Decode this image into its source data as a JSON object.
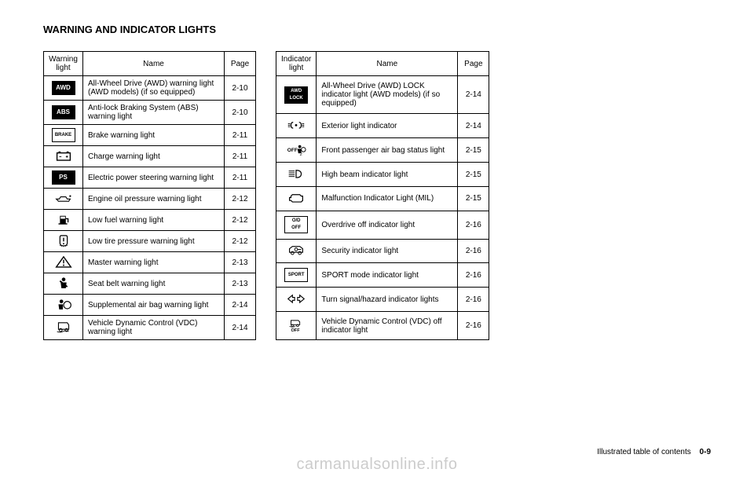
{
  "section_title": "WARNING AND INDICATOR LIGHTS",
  "warning_table": {
    "headers": {
      "icon": "Warning light",
      "name": "Name",
      "page": "Page"
    },
    "rows": [
      {
        "icon_type": "text-box",
        "icon_text": "AWD",
        "icon_filled": true,
        "name": "All-Wheel Drive (AWD) warning light (AWD models) (if so equipped)",
        "page": "2-10"
      },
      {
        "icon_type": "text-box",
        "icon_text": "ABS",
        "icon_filled": true,
        "name": "Anti-lock Braking System (ABS) warning light",
        "page": "2-10"
      },
      {
        "icon_type": "text-box",
        "icon_text": "BRAKE",
        "icon_filled": false,
        "name": "Brake warning light",
        "page": "2-11"
      },
      {
        "icon_type": "svg",
        "icon_svg": "battery",
        "name": "Charge warning light",
        "page": "2-11"
      },
      {
        "icon_type": "text-box",
        "icon_text": "PS",
        "icon_filled": true,
        "name": "Electric power steering warning light",
        "page": "2-11"
      },
      {
        "icon_type": "svg",
        "icon_svg": "oil",
        "name": "Engine oil pressure warning light",
        "page": "2-12"
      },
      {
        "icon_type": "svg",
        "icon_svg": "fuel",
        "name": "Low fuel warning light",
        "page": "2-12"
      },
      {
        "icon_type": "svg",
        "icon_svg": "tire",
        "name": "Low tire pressure warning light",
        "page": "2-12"
      },
      {
        "icon_type": "svg",
        "icon_svg": "triangle",
        "name": "Master warning light",
        "page": "2-13"
      },
      {
        "icon_type": "svg",
        "icon_svg": "seatbelt",
        "name": "Seat belt warning light",
        "page": "2-13"
      },
      {
        "icon_type": "svg",
        "icon_svg": "airbag",
        "name": "Supplemental air bag warning light",
        "page": "2-14"
      },
      {
        "icon_type": "svg",
        "icon_svg": "vdc",
        "name": "Vehicle Dynamic Control (VDC) warning light",
        "page": "2-14"
      }
    ]
  },
  "indicator_table": {
    "headers": {
      "icon": "Indicator light",
      "name": "Name",
      "page": "Page"
    },
    "rows": [
      {
        "icon_type": "text-box-stack",
        "icon_text": "AWD LOCK",
        "icon_filled": true,
        "name": "All-Wheel Drive (AWD) LOCK indicator light (AWD models) (if so equipped)",
        "page": "2-14"
      },
      {
        "icon_type": "svg",
        "icon_svg": "lights",
        "name": "Exterior light indicator",
        "page": "2-14"
      },
      {
        "icon_type": "svg",
        "icon_svg": "passenger",
        "name": "Front passenger air bag status light",
        "page": "2-15"
      },
      {
        "icon_type": "svg",
        "icon_svg": "highbeam",
        "name": "High beam indicator light",
        "page": "2-15"
      },
      {
        "icon_type": "svg",
        "icon_svg": "engine",
        "name": "Malfunction Indicator Light (MIL)",
        "page": "2-15"
      },
      {
        "icon_type": "text-box-stack",
        "icon_text": "O/D OFF",
        "icon_filled": false,
        "name": "Overdrive off indicator light",
        "page": "2-16"
      },
      {
        "icon_type": "svg",
        "icon_svg": "security",
        "name": "Security indicator light",
        "page": "2-16"
      },
      {
        "icon_type": "text-box",
        "icon_text": "SPORT",
        "icon_filled": false,
        "name": "SPORT mode indicator light",
        "page": "2-16"
      },
      {
        "icon_type": "svg",
        "icon_svg": "turnsignal",
        "name": "Turn signal/hazard indicator lights",
        "page": "2-16"
      },
      {
        "icon_type": "svg",
        "icon_svg": "vdcoff",
        "name": "Vehicle Dynamic Control (VDC) off indicator light",
        "page": "2-16"
      }
    ]
  },
  "footer_text": "Illustrated table of contents",
  "footer_page": "0-9",
  "watermark": "carmanualsonline.info"
}
